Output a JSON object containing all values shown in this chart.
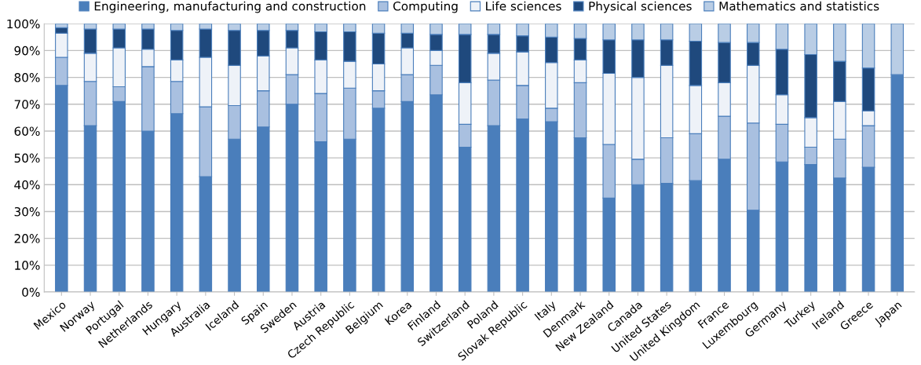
{
  "chart_data": {
    "type": "bar",
    "stacked": true,
    "categories": [
      "Mexico",
      "Norway",
      "Portugal",
      "Netherlands",
      "Hungary",
      "Australia",
      "Iceland",
      "Spain",
      "Sweden",
      "Austria",
      "Czech Republic",
      "Belgium",
      "Korea",
      "Finland",
      "Switzerland",
      "Poland",
      "Slovak Republic",
      "Italy",
      "Denmark",
      "New Zealand",
      "Canada",
      "United States",
      "United Kingdom",
      "France",
      "Luxembourg",
      "Germany",
      "Turkey",
      "Ireland",
      "Greece",
      "Japan"
    ],
    "series": [
      {
        "name": "Engineering, manufacturing and construction",
        "color": "#4a7ebb",
        "values": [
          77,
          62,
          71,
          60,
          66.5,
          43,
          57,
          61.5,
          70,
          56,
          57,
          68.5,
          71,
          73.5,
          54,
          62,
          64.5,
          63.5,
          57.5,
          35,
          40,
          40.5,
          41.5,
          49.5,
          30.5,
          48.5,
          47.5,
          42.5,
          46.5,
          81
        ]
      },
      {
        "name": "Computing",
        "color": "#a9c0e0",
        "values": [
          10.5,
          16.5,
          5.5,
          24,
          12,
          26,
          12.5,
          13.5,
          11,
          18,
          19,
          6.5,
          10,
          11,
          8.5,
          17,
          12.5,
          5,
          20.5,
          20,
          9.5,
          17,
          17.5,
          16,
          32.5,
          14,
          6.5,
          14.5,
          15.5,
          0
        ]
      },
      {
        "name": "Life sciences",
        "color": "#eef2f8",
        "values": [
          9,
          10.5,
          14.5,
          6.5,
          8,
          18.5,
          15,
          13,
          10,
          12.5,
          10,
          10,
          10,
          5.5,
          15.5,
          10,
          12.5,
          17,
          8.5,
          26.5,
          30.5,
          27,
          18,
          12.5,
          21.5,
          11,
          11,
          14,
          5.5,
          0
        ]
      },
      {
        "name": "Physical sciences",
        "color": "#1f497d",
        "values": [
          2,
          9,
          7,
          7.5,
          11,
          10.5,
          13,
          9.5,
          6.5,
          10.5,
          11,
          11.5,
          5.5,
          6,
          18,
          7,
          6,
          9.5,
          8,
          12.5,
          14,
          9.5,
          16.5,
          15,
          8.5,
          17,
          23.5,
          15,
          16,
          0
        ]
      },
      {
        "name": "Mathematics and statistics",
        "color": "#b9cde5",
        "values": [
          1.5,
          2,
          2,
          2,
          2.5,
          2,
          2.5,
          2.5,
          2.5,
          3,
          3,
          3.5,
          3.5,
          4,
          4,
          4,
          4.5,
          5,
          5.5,
          6,
          6,
          6,
          6.5,
          7,
          7,
          9.5,
          11.5,
          14,
          16.5,
          19
        ]
      }
    ],
    "ylim": [
      0,
      100
    ],
    "yticks": [
      {
        "value": 0,
        "label": "0%"
      },
      {
        "value": 10,
        "label": "10%"
      },
      {
        "value": 20,
        "label": "20%"
      },
      {
        "value": 30,
        "label": "30%"
      },
      {
        "value": 40,
        "label": "40%"
      },
      {
        "value": 50,
        "label": "50%"
      },
      {
        "value": 60,
        "label": "60%"
      },
      {
        "value": 70,
        "label": "70%"
      },
      {
        "value": 80,
        "label": "80%"
      },
      {
        "value": 90,
        "label": "90%"
      },
      {
        "value": 100,
        "label": "100%"
      }
    ],
    "grid": "y",
    "legend": "top"
  }
}
